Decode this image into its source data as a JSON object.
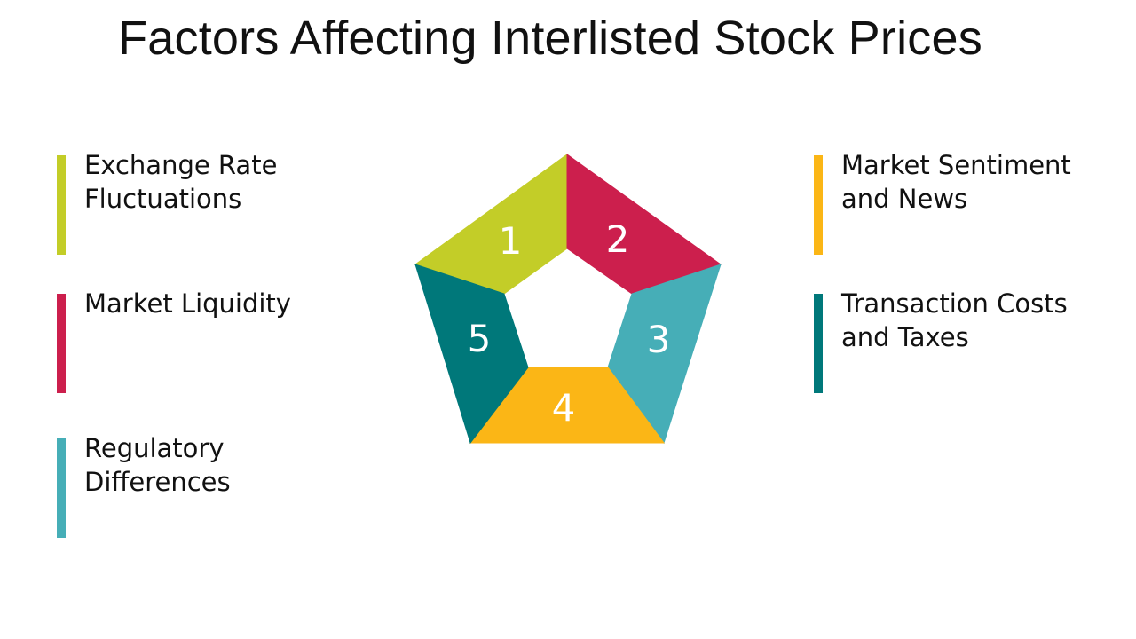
{
  "title": "Factors Affecting Interlisted Stock Prices",
  "colors": {
    "lime": "#c3cd28",
    "crimson": "#cc1f4d",
    "teal_light": "#46aeb7",
    "amber": "#fbb616",
    "teal_dark": "#00787a"
  },
  "factors": [
    {
      "number": "1",
      "label": "Exchange Rate\nFluctuations",
      "color": "#c3cd28"
    },
    {
      "number": "2",
      "label": "Market Liquidity",
      "color": "#cc1f4d"
    },
    {
      "number": "3",
      "label": "Regulatory\nDifferences",
      "color": "#46aeb7"
    },
    {
      "number": "4",
      "label": "Market Sentiment\nand News",
      "color": "#fbb616"
    },
    {
      "number": "5",
      "label": "Transaction Costs\nand Taxes",
      "color": "#00787a"
    }
  ],
  "pentagon": {
    "segments": [
      {
        "number": "1",
        "color": "#c3cd28"
      },
      {
        "number": "2",
        "color": "#cc1f4d"
      },
      {
        "number": "3",
        "color": "#46aeb7"
      },
      {
        "number": "4",
        "color": "#fbb616"
      },
      {
        "number": "5",
        "color": "#00787a"
      }
    ]
  }
}
